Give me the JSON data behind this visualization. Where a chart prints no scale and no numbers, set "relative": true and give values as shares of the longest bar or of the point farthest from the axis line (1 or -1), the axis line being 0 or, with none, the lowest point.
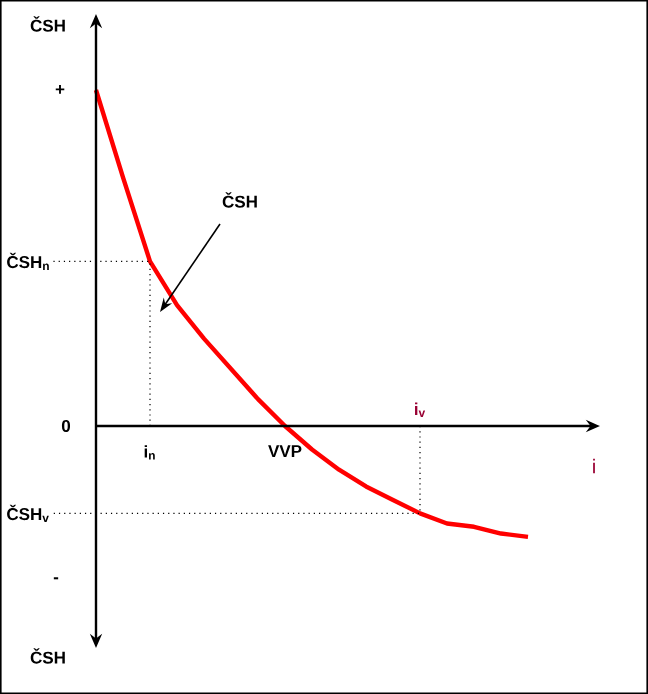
{
  "chart_data": {
    "type": "line",
    "relative": true,
    "ylabel": "ČSH",
    "xlabel": "i",
    "categories": [
      null,
      null,
      "i$_{n}$",
      null,
      null,
      null,
      null,
      "VVP",
      null,
      null,
      null,
      null,
      "i$_{v}$",
      null,
      null,
      null,
      null
    ],
    "series": [
      {
        "name": "ČSH",
        "color": "#ff0000",
        "values": [
          1,
          0.74,
          0.49,
          0.36,
          0.26,
          0.17,
          0.08,
          0,
          -0.07,
          -0.13,
          -0.18,
          -0.22,
          -0.26,
          -0.29,
          -0.3,
          -0.32,
          -0.33
        ]
      }
    ],
    "annotations": [
      "+",
      "0",
      "-",
      "ČSH",
      "ČSH$_{n}$",
      "ČSH$_{v}$"
    ]
  }
}
